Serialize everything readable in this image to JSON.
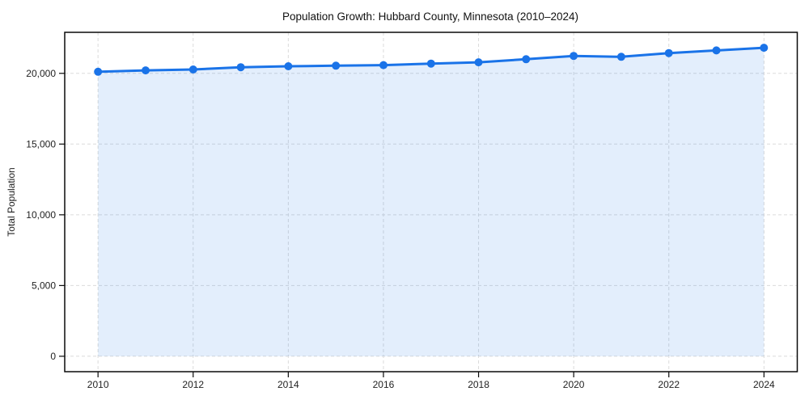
{
  "chart_data": {
    "type": "line",
    "title": "Population Growth: Hubbard County, Minnesota (2010–2024)",
    "xlabel": "",
    "ylabel": "Total Population",
    "x": [
      2010,
      2011,
      2012,
      2013,
      2014,
      2015,
      2016,
      2017,
      2018,
      2019,
      2020,
      2021,
      2022,
      2023,
      2024
    ],
    "series": [
      {
        "name": "Total Population",
        "values": [
          20110,
          20210,
          20270,
          20430,
          20500,
          20540,
          20580,
          20690,
          20780,
          21000,
          21230,
          21170,
          21430,
          21620,
          21810
        ]
      }
    ],
    "xticks": [
      2010,
      2012,
      2014,
      2016,
      2018,
      2020,
      2022,
      2024
    ],
    "xtick_labels": [
      "2010",
      "2012",
      "2014",
      "2016",
      "2018",
      "2020",
      "2022",
      "2024"
    ],
    "yticks": [
      0,
      5000,
      10000,
      15000,
      20000
    ],
    "ytick_labels": [
      "0",
      "5,000",
      "10,000",
      "15,000",
      "20,000"
    ],
    "xlim": [
      2009.3,
      2024.7
    ],
    "ylim": [
      -1090,
      22900
    ],
    "grid": "dashed, both axes",
    "legend": "none",
    "marker": "circle",
    "area_fill": true,
    "style": {
      "line_color": "#1a73e8",
      "marker_color": "#1a73e8",
      "area_fill_color": "#1a73e8",
      "area_fill_opacity": 0.12,
      "grid_color": "#dbdbdb",
      "spine_color": "#0a0a0a",
      "background": "#ffffff"
    }
  }
}
